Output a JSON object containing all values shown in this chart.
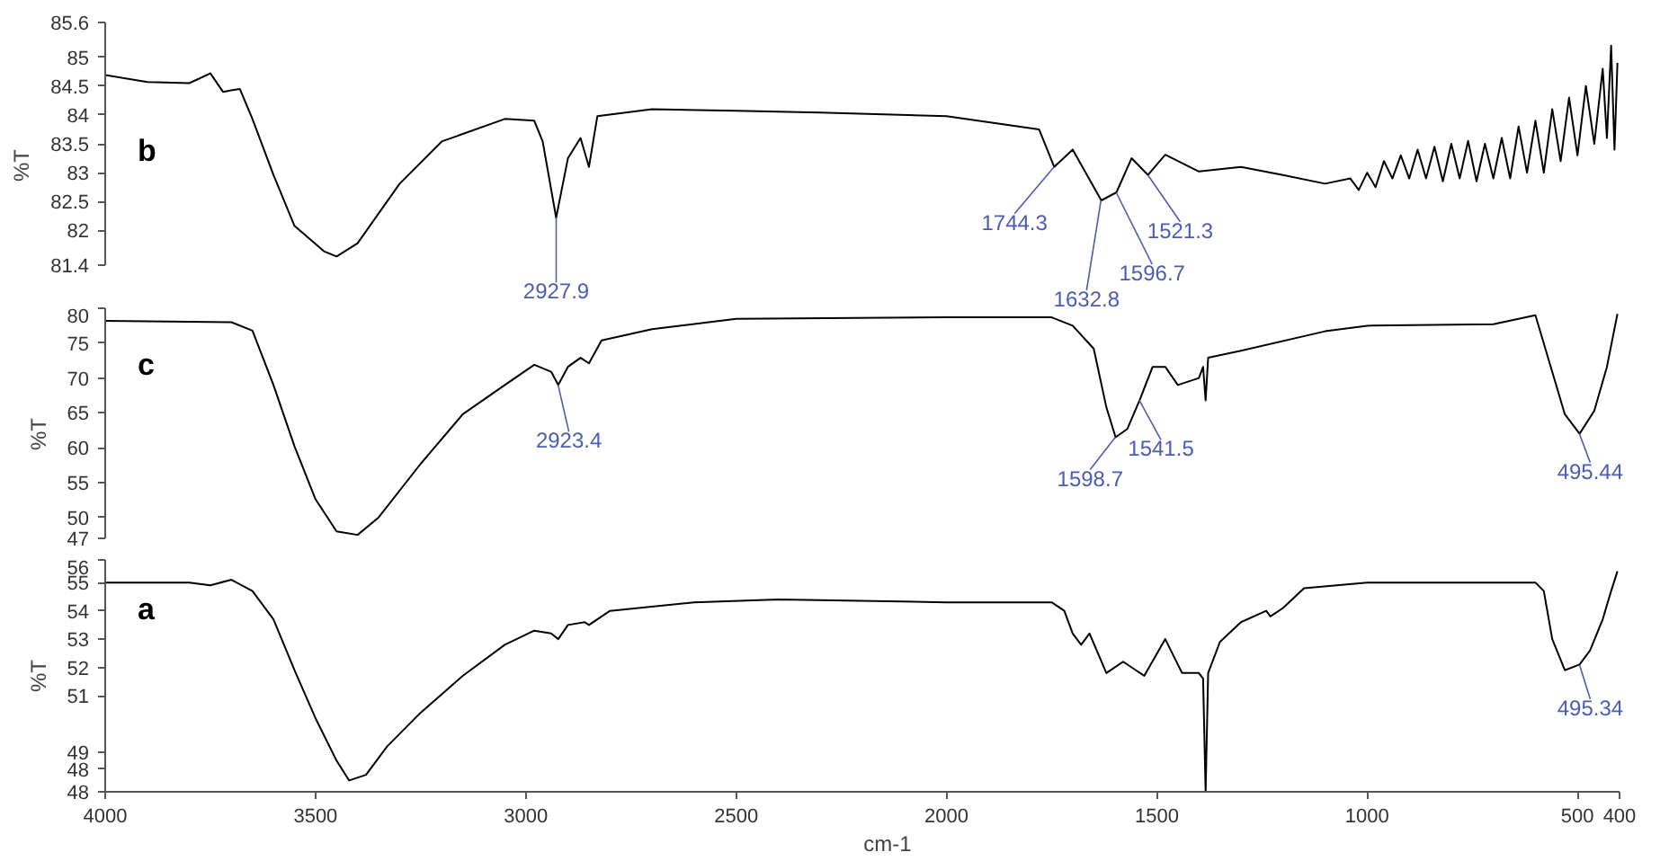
{
  "chart_data": [
    {
      "type": "line",
      "title": "b",
      "ylabel": "%T",
      "xlim": [
        4000,
        400
      ],
      "xticks": [
        4000,
        3500,
        3000,
        2500,
        2000,
        1500,
        1000,
        500,
        400
      ],
      "ylim": [
        81.4,
        85.6
      ],
      "yticks": [
        81.4,
        82.0,
        82.5,
        83.0,
        83.5,
        84.0,
        84.5,
        85.0,
        85.6
      ],
      "tick_labels": "y",
      "series": [
        {
          "color": "#000000",
          "x": [
            4000,
            3900,
            3800,
            3750,
            3720,
            3680,
            3650,
            3600,
            3550,
            3480,
            3450,
            3400,
            3300,
            3200,
            3050,
            2980,
            2960,
            2928,
            2900,
            2870,
            2850,
            2830,
            2700,
            2500,
            2300,
            2000,
            1780,
            1744,
            1700,
            1632,
            1596,
            1560,
            1521,
            1480,
            1400,
            1300,
            1200,
            1100,
            1040,
            1020,
            1000,
            980,
            960,
            940,
            920,
            900,
            880,
            860,
            840,
            820,
            800,
            780,
            760,
            740,
            720,
            700,
            680,
            660,
            640,
            620,
            600,
            580,
            560,
            540,
            520,
            500,
            480,
            460,
            440,
            430,
            420,
            412,
            405
          ],
          "values": [
            84.69,
            84.57,
            84.55,
            84.72,
            84.4,
            84.45,
            83.93,
            82.96,
            82.08,
            81.64,
            81.55,
            81.78,
            82.81,
            83.54,
            83.93,
            83.9,
            83.54,
            82.22,
            83.25,
            83.6,
            83.1,
            83.98,
            84.1,
            84.07,
            84.04,
            83.98,
            83.75,
            83.1,
            83.4,
            82.52,
            82.66,
            83.25,
            82.96,
            83.31,
            83.02,
            83.1,
            82.96,
            82.81,
            82.9,
            82.7,
            83.0,
            82.75,
            83.2,
            82.9,
            83.3,
            82.9,
            83.4,
            82.9,
            83.45,
            82.85,
            83.5,
            82.9,
            83.55,
            82.85,
            83.5,
            82.9,
            83.6,
            82.9,
            83.8,
            83.0,
            83.9,
            83.0,
            84.1,
            83.2,
            84.3,
            83.3,
            84.5,
            83.5,
            84.8,
            83.6,
            85.2,
            83.4,
            84.9
          ]
        }
      ],
      "annotations": [
        {
          "text": "2927.9",
          "x": 2927.9,
          "y": 82.22
        },
        {
          "text": "1744.3",
          "x": 1744.3,
          "y": 83.1
        },
        {
          "text": "1632.8",
          "x": 1632.8,
          "y": 82.52
        },
        {
          "text": "1596.7",
          "x": 1596.7,
          "y": 82.66
        },
        {
          "text": "1521.3",
          "x": 1521.3,
          "y": 82.96
        }
      ]
    },
    {
      "type": "line",
      "title": "c",
      "ylabel": "%T",
      "xlim": [
        4000,
        400
      ],
      "xticks": [
        4000,
        3500,
        3000,
        2500,
        2000,
        1500,
        1000,
        500,
        400
      ],
      "ylim": [
        47,
        80
      ],
      "yticks": [
        47,
        50,
        55,
        60,
        65,
        70,
        75,
        80
      ],
      "tick_labels": "y",
      "series": [
        {
          "color": "#000000",
          "x": [
            4000,
            3700,
            3650,
            3600,
            3550,
            3500,
            3450,
            3400,
            3350,
            3250,
            3150,
            3050,
            2980,
            2940,
            2923,
            2900,
            2870,
            2850,
            2820,
            2700,
            2500,
            2000,
            1750,
            1700,
            1650,
            1620,
            1598,
            1570,
            1541,
            1510,
            1480,
            1450,
            1400,
            1390,
            1384,
            1378,
            1300,
            1100,
            1000,
            700,
            600,
            570,
            530,
            495,
            460,
            430,
            405
          ],
          "values": [
            78.2,
            78.0,
            76.8,
            69.0,
            60.2,
            52.6,
            48.0,
            47.5,
            50.0,
            57.7,
            64.8,
            69.0,
            71.9,
            70.9,
            69.0,
            71.6,
            72.9,
            72.1,
            75.4,
            77.0,
            78.5,
            78.7,
            78.7,
            77.5,
            74.2,
            65.8,
            61.5,
            62.7,
            66.8,
            71.6,
            71.6,
            69.0,
            70.0,
            71.6,
            66.8,
            72.9,
            73.9,
            76.7,
            77.5,
            77.7,
            79.0,
            72.9,
            64.8,
            62.0,
            65.3,
            71.6,
            79.2
          ]
        }
      ],
      "annotations": [
        {
          "text": "2923.4",
          "x": 2923.4,
          "y": 69.0
        },
        {
          "text": "1598.7",
          "x": 1598.7,
          "y": 61.5
        },
        {
          "text": "1541.5",
          "x": 1541.5,
          "y": 66.8
        },
        {
          "text": "495.44",
          "x": 495.44,
          "y": 62.0
        }
      ]
    },
    {
      "type": "line",
      "title": "a",
      "ylabel": "%T",
      "xlabel": "cm-1",
      "xlim": [
        4000,
        400
      ],
      "xticks": [
        4000,
        3500,
        3000,
        2500,
        2000,
        1500,
        1000,
        500,
        400
      ],
      "ylim": [
        47.6,
        55.8
      ],
      "yticks": [
        {
          "value": 47.6,
          "label": "48"
        },
        {
          "value": 48.4,
          "label": "48"
        },
        49,
        51,
        52,
        53,
        54,
        55,
        {
          "value": 55.8,
          "label": "56"
        }
      ],
      "series": [
        {
          "color": "#000000",
          "x": [
            4000,
            3800,
            3750,
            3700,
            3650,
            3600,
            3550,
            3500,
            3450,
            3420,
            3380,
            3330,
            3250,
            3150,
            3050,
            2980,
            2940,
            2923,
            2900,
            2860,
            2850,
            2800,
            2600,
            2400,
            2000,
            1750,
            1720,
            1700,
            1680,
            1660,
            1620,
            1580,
            1530,
            1480,
            1440,
            1400,
            1390,
            1384,
            1378,
            1350,
            1300,
            1240,
            1230,
            1200,
            1150,
            1000,
            800,
            600,
            580,
            560,
            530,
            495,
            470,
            440,
            420,
            405
          ],
          "values": [
            55.0,
            55.0,
            54.9,
            55.1,
            54.7,
            53.7,
            51.9,
            50.2,
            48.7,
            48.0,
            48.2,
            49.2,
            50.4,
            51.7,
            52.8,
            53.3,
            53.2,
            53.0,
            53.5,
            53.6,
            53.5,
            54.0,
            54.3,
            54.4,
            54.3,
            54.3,
            54.0,
            53.2,
            52.8,
            53.2,
            51.8,
            52.2,
            51.7,
            53.0,
            51.8,
            51.8,
            51.6,
            47.6,
            51.8,
            52.9,
            53.6,
            54.0,
            53.8,
            54.1,
            54.8,
            55.0,
            55.0,
            55.0,
            54.7,
            53.0,
            51.9,
            52.1,
            52.6,
            53.7,
            54.7,
            55.4
          ]
        }
      ],
      "annotations": [
        {
          "text": "495.34",
          "x": 495.34,
          "y": 52.1
        }
      ]
    }
  ]
}
